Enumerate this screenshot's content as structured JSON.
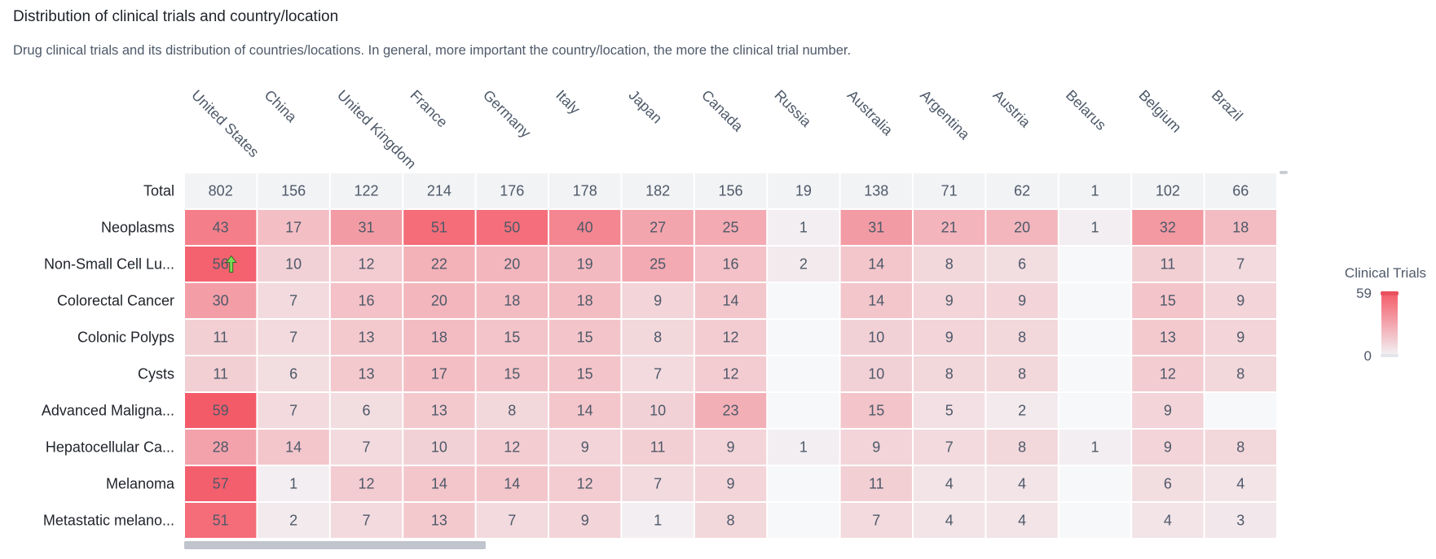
{
  "title": "Distribution of clinical trials and country/location",
  "subtitle": "Drug clinical trials and its distribution of countries/locations. In general, more important the country/location, the more the clinical trial number.",
  "colors": {
    "low": "#f2f3f5",
    "high": "#f45b69",
    "total_row": "#f2f3f5"
  },
  "chart_data": {
    "type": "heatmap",
    "columns": [
      "United States",
      "China",
      "United Kingdom",
      "France",
      "Germany",
      "Italy",
      "Japan",
      "Canada",
      "Russia",
      "Australia",
      "Argentina",
      "Austria",
      "Belarus",
      "Belgium",
      "Brazil"
    ],
    "rows": [
      {
        "label": "Total",
        "values": [
          802,
          156,
          122,
          214,
          176,
          178,
          182,
          156,
          19,
          138,
          71,
          62,
          1,
          102,
          66
        ]
      },
      {
        "label": "Neoplasms",
        "values": [
          43,
          17,
          31,
          51,
          50,
          40,
          27,
          25,
          1,
          31,
          21,
          20,
          1,
          32,
          18
        ]
      },
      {
        "label": "Non-Small Cell Lu...",
        "values": [
          56,
          10,
          12,
          22,
          20,
          19,
          25,
          16,
          2,
          14,
          8,
          6,
          null,
          11,
          7
        ]
      },
      {
        "label": "Colorectal Cancer",
        "values": [
          30,
          7,
          16,
          20,
          18,
          18,
          9,
          14,
          null,
          14,
          9,
          9,
          null,
          15,
          9
        ]
      },
      {
        "label": "Colonic Polyps",
        "values": [
          11,
          7,
          13,
          18,
          15,
          15,
          8,
          12,
          null,
          10,
          9,
          8,
          null,
          13,
          9
        ]
      },
      {
        "label": "Cysts",
        "values": [
          11,
          6,
          13,
          17,
          15,
          15,
          7,
          12,
          null,
          10,
          8,
          8,
          null,
          12,
          8
        ]
      },
      {
        "label": "Advanced Maligna...",
        "values": [
          59,
          7,
          6,
          13,
          8,
          14,
          10,
          23,
          null,
          15,
          5,
          2,
          null,
          9,
          null
        ]
      },
      {
        "label": "Hepatocellular Ca...",
        "values": [
          28,
          14,
          7,
          10,
          12,
          9,
          11,
          9,
          1,
          9,
          7,
          8,
          1,
          9,
          8
        ]
      },
      {
        "label": "Melanoma",
        "values": [
          57,
          1,
          12,
          14,
          14,
          12,
          7,
          9,
          null,
          11,
          4,
          4,
          null,
          6,
          4
        ]
      },
      {
        "label": "Metastatic melano...",
        "values": [
          51,
          2,
          7,
          13,
          7,
          9,
          1,
          8,
          null,
          7,
          4,
          4,
          null,
          4,
          3
        ]
      }
    ],
    "legend": {
      "title": "Clinical Trials",
      "max": 59,
      "min": 0
    },
    "cursor_cell": {
      "row": 2,
      "col": 0
    }
  }
}
